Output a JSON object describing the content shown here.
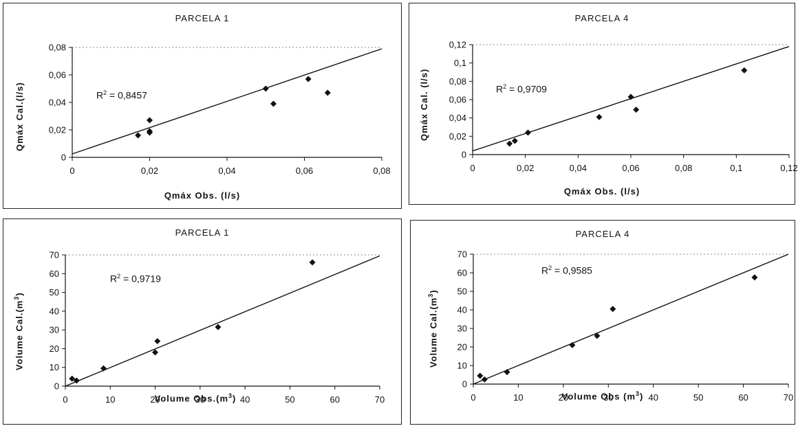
{
  "chart_data": [
    {
      "type": "scatter",
      "title": "PARCELA 1",
      "xlabel": "Qmáx Obs. (l/s)",
      "ylabel": "Qmáx Cal.(l/s)",
      "r2_label": "R",
      "r2_sup": "2",
      "r2_value": " = 0,8457",
      "xlim": [
        0,
        0.08
      ],
      "ylim": [
        0,
        0.08
      ],
      "xticks": [
        "0",
        "0,02",
        "0,04",
        "0,06",
        "0,08"
      ],
      "yticks": [
        "0",
        "0,02",
        "0,04",
        "0,06",
        "0,08"
      ],
      "xtick_values": [
        0,
        0.02,
        0.04,
        0.06,
        0.08
      ],
      "ytick_values": [
        0,
        0.02,
        0.04,
        0.06,
        0.08
      ],
      "points": [
        {
          "x": 0.017,
          "y": 0.016
        },
        {
          "x": 0.02,
          "y": 0.027
        },
        {
          "x": 0.02,
          "y": 0.019
        },
        {
          "x": 0.02,
          "y": 0.018
        },
        {
          "x": 0.05,
          "y": 0.05
        },
        {
          "x": 0.052,
          "y": 0.039
        },
        {
          "x": 0.061,
          "y": 0.057
        },
        {
          "x": 0.066,
          "y": 0.047
        }
      ],
      "trendline": [
        {
          "x": 0,
          "y": 0.0025
        },
        {
          "x": 0.08,
          "y": 0.079
        }
      ]
    },
    {
      "type": "scatter",
      "title": "PARCELA 4",
      "xlabel": "Qmáx Obs. (l/s)",
      "ylabel": "Qmáx Cal. (l/s)",
      "r2_label": "R",
      "r2_sup": "2",
      "r2_value": " = 0,9709",
      "xlim": [
        0,
        0.12
      ],
      "ylim": [
        0,
        0.12
      ],
      "xticks": [
        "0",
        "0,02",
        "0,04",
        "0,06",
        "0,08",
        "0,1",
        "0,12"
      ],
      "yticks": [
        "0",
        "0,02",
        "0,04",
        "0,06",
        "0,08",
        "0,1",
        "0,12"
      ],
      "xtick_values": [
        0,
        0.02,
        0.04,
        0.06,
        0.08,
        0.1,
        0.12
      ],
      "ytick_values": [
        0,
        0.02,
        0.04,
        0.06,
        0.08,
        0.1,
        0.12
      ],
      "points": [
        {
          "x": 0.014,
          "y": 0.012
        },
        {
          "x": 0.016,
          "y": 0.015
        },
        {
          "x": 0.021,
          "y": 0.024
        },
        {
          "x": 0.048,
          "y": 0.041
        },
        {
          "x": 0.06,
          "y": 0.063
        },
        {
          "x": 0.062,
          "y": 0.049
        },
        {
          "x": 0.103,
          "y": 0.092
        }
      ],
      "trendline": [
        {
          "x": 0,
          "y": 0.004
        },
        {
          "x": 0.12,
          "y": 0.118
        }
      ]
    },
    {
      "type": "scatter",
      "title": "PARCELA 1",
      "xlabel": "Volume Obs.(m",
      "xlabel_sup": "3",
      "xlabel_end": ")",
      "ylabel": "Volume Cal.(m",
      "ylabel_sup": "3",
      "ylabel_end": ")",
      "r2_label": "R",
      "r2_sup": "2",
      "r2_value": " = 0,9719",
      "xlim": [
        0,
        70
      ],
      "ylim": [
        0,
        70
      ],
      "xticks": [
        "0",
        "10",
        "20",
        "30",
        "40",
        "50",
        "60",
        "70"
      ],
      "yticks": [
        "0",
        "10",
        "20",
        "30",
        "40",
        "50",
        "60",
        "70"
      ],
      "xtick_values": [
        0,
        10,
        20,
        30,
        40,
        50,
        60,
        70
      ],
      "ytick_values": [
        0,
        10,
        20,
        30,
        40,
        50,
        60,
        70
      ],
      "points": [
        {
          "x": 1.5,
          "y": 4
        },
        {
          "x": 2.5,
          "y": 3
        },
        {
          "x": 8.5,
          "y": 9.5
        },
        {
          "x": 20,
          "y": 18
        },
        {
          "x": 20.5,
          "y": 24
        },
        {
          "x": 34,
          "y": 31.5
        },
        {
          "x": 55,
          "y": 66
        }
      ],
      "trendline": [
        {
          "x": 0,
          "y": 0
        },
        {
          "x": 70,
          "y": 69.5
        }
      ]
    },
    {
      "type": "scatter",
      "title": "PARCELA 4",
      "xlabel": "Volume Obs (m",
      "xlabel_sup": "3",
      "xlabel_end": ")",
      "ylabel": "Volume Cal.(m",
      "ylabel_sup": "3",
      "ylabel_end": ")",
      "r2_label": "R",
      "r2_sup": "2",
      "r2_value": " = 0,9585",
      "xlim": [
        0,
        70
      ],
      "ylim": [
        0,
        70
      ],
      "xticks": [
        "0",
        "10",
        "20",
        "30",
        "40",
        "50",
        "60",
        "70"
      ],
      "yticks": [
        "0",
        "10",
        "20",
        "30",
        "40",
        "50",
        "60",
        "70"
      ],
      "xtick_values": [
        0,
        10,
        20,
        30,
        40,
        50,
        60,
        70
      ],
      "ytick_values": [
        0,
        10,
        20,
        30,
        40,
        50,
        60,
        70
      ],
      "points": [
        {
          "x": 1.5,
          "y": 4.5
        },
        {
          "x": 2.5,
          "y": 2.5
        },
        {
          "x": 7.5,
          "y": 6.5
        },
        {
          "x": 22,
          "y": 21
        },
        {
          "x": 27.5,
          "y": 26
        },
        {
          "x": 31,
          "y": 40.5
        },
        {
          "x": 62.5,
          "y": 57.5
        }
      ],
      "trendline": [
        {
          "x": 0,
          "y": 0
        },
        {
          "x": 70,
          "y": 70
        }
      ]
    }
  ]
}
